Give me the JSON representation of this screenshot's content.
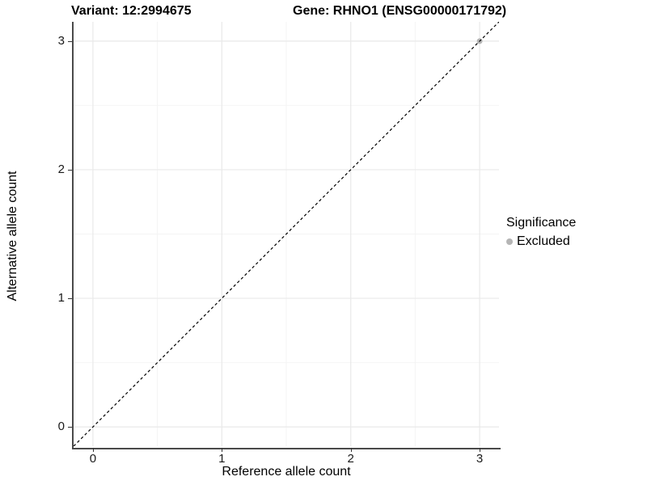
{
  "chart_data": {
    "type": "scatter",
    "titles": {
      "variant": "Variant: 12:2994675",
      "gene": "Gene: RHNO1 (ENSG00000171792)"
    },
    "xlabel": "Reference allele count",
    "ylabel": "Alternative allele count",
    "xlim": [
      -0.15,
      3.15
    ],
    "ylim": [
      -0.15,
      3.15
    ],
    "xticks": [
      0,
      1,
      2,
      3
    ],
    "yticks": [
      0,
      1,
      2,
      3
    ],
    "minor_gridlines": [
      0.5,
      1.5,
      2.5
    ],
    "grid": true,
    "points": [
      {
        "x": 3,
        "y": 3,
        "series": "Excluded",
        "color": "#b5b5b5"
      }
    ],
    "reference_line": {
      "slope": 1,
      "intercept": 0,
      "style": "dashed",
      "color": "#000000"
    },
    "legend": {
      "title": "Significance",
      "position": "right",
      "entries": [
        {
          "label": "Excluded",
          "color": "#b5b5b5"
        }
      ]
    },
    "colors": {
      "background": "#ffffff",
      "grid_major": "#e9e9e9",
      "grid_minor": "#f4f4f4",
      "axis_line": "#4a4a4a",
      "tick_mark": "#333333",
      "point_excluded": "#b5b5b5"
    }
  }
}
